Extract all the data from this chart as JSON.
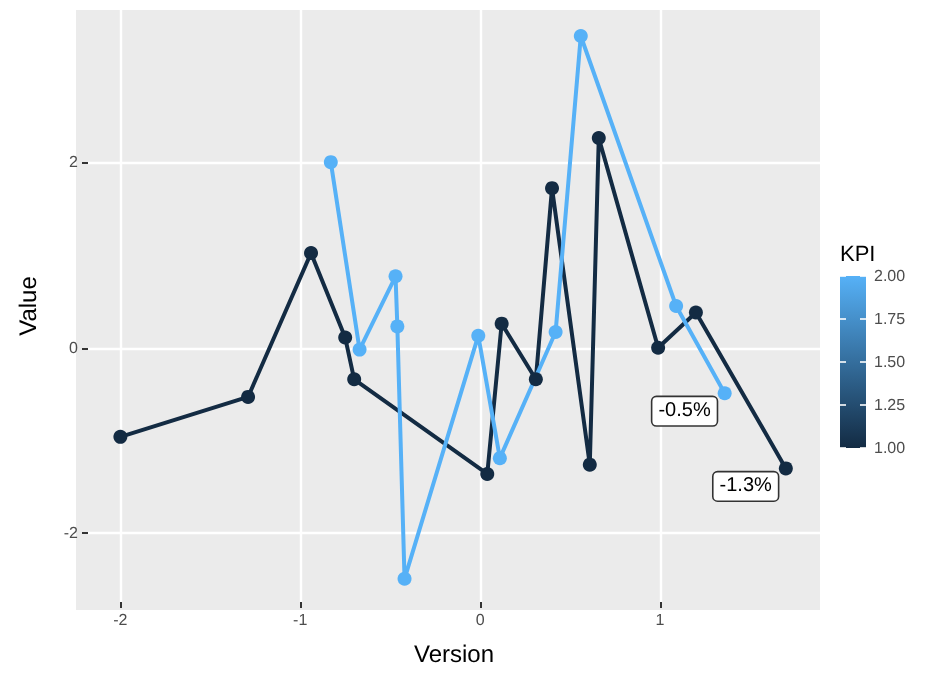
{
  "chart_data": {
    "type": "line",
    "xlabel": "Version",
    "ylabel": "Value",
    "clabel": "KPI",
    "clim": [
      1,
      2
    ],
    "cticks": [
      {
        "value": 1,
        "label": "1.00"
      },
      {
        "value": 1.25,
        "label": "1.25"
      },
      {
        "value": 1.5,
        "label": "1.50"
      },
      {
        "value": 1.75,
        "label": "1.75"
      },
      {
        "value": 2,
        "label": "2.00"
      }
    ],
    "series": [
      {
        "color": "#132b43",
        "x": [
          -2,
          -1.29,
          -0.94,
          -0.75,
          -0.7,
          0.04,
          0.12,
          0.31,
          0.4,
          0.61,
          0.66,
          0.99,
          1.2,
          1.7
        ],
        "values": [
          -0.96,
          -0.53,
          1.02,
          0.11,
          -0.34,
          -1.36,
          0.26,
          -0.34,
          1.72,
          -1.26,
          2.26,
          0,
          0.38,
          -1.3
        ]
      },
      {
        "color": "#56b1f7",
        "x": [
          -0.83,
          -0.67,
          -0.47,
          -0.46,
          -0.42,
          -0.01,
          0.11,
          0.42,
          0.56,
          1.09,
          1.36
        ],
        "values": [
          2,
          -0.02,
          0.77,
          0.23,
          -2.49,
          0.13,
          -1.19,
          0.17,
          3.36,
          0.45,
          -0.49
        ]
      }
    ],
    "annotations": [
      {
        "text": "-0.5%",
        "x": 1.36,
        "y": -0.49
      },
      {
        "text": "-1.3%",
        "x": 1.7,
        "y": -1.3
      }
    ],
    "xlim": [
      -2.18,
      1.89
    ],
    "xticks": [
      -2,
      -1,
      0,
      1
    ],
    "ylim": [
      -2.74,
      3.64
    ],
    "yticks": [
      -2,
      0,
      2
    ],
    "grid": true,
    "marker": "circle",
    "line_style": "solid"
  }
}
